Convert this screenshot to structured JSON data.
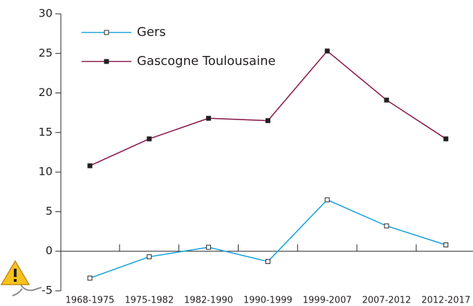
{
  "chart_data": {
    "type": "line",
    "categories": [
      "1968-1975",
      "1975-1982",
      "1982-1990",
      "1990-1999",
      "1999-2007",
      "2007-2012",
      "2012-2017"
    ],
    "series": [
      {
        "name": "Gers",
        "color": "#1aa3dc",
        "marker": "open",
        "values": [
          -3.4,
          -0.7,
          0.5,
          -1.3,
          6.5,
          3.2,
          0.8
        ]
      },
      {
        "name": "Gascogne Toulousaine",
        "color": "#8b1a4e",
        "marker": "filled",
        "values": [
          10.8,
          14.2,
          16.8,
          16.5,
          25.3,
          19.1,
          14.2
        ]
      }
    ],
    "ylim": [
      -5,
      30
    ],
    "yticks": [
      -5,
      0,
      5,
      10,
      15,
      20,
      25,
      30
    ],
    "grid": false,
    "legend": "top-left"
  }
}
